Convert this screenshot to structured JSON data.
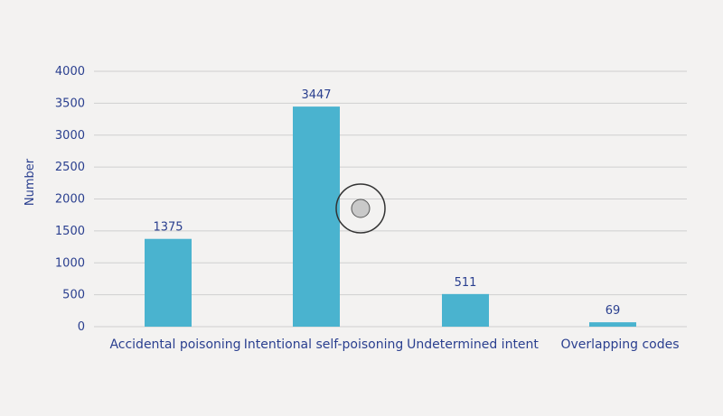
{
  "chart_data": {
    "type": "bar",
    "categories": [
      "Accidental poisoning",
      "Intentional self-poisoning",
      "Undetermined intent",
      "Overlapping codes"
    ],
    "values": [
      1375,
      3447,
      511,
      69
    ],
    "data_labels": [
      "1375",
      "3447",
      "511",
      "69"
    ],
    "ylabel": "Number",
    "ylim": [
      0,
      4000
    ],
    "yticks": [
      0,
      500,
      1000,
      1500,
      2000,
      2500,
      3000,
      3500,
      4000
    ],
    "grid": true,
    "colors": {
      "bar": "#4ab3cf",
      "grid": "#cfcfcf",
      "text": "#2a3f8f",
      "background": "#f3f2f1"
    }
  },
  "cursor": {
    "icon": "cursor-ring-icon"
  }
}
